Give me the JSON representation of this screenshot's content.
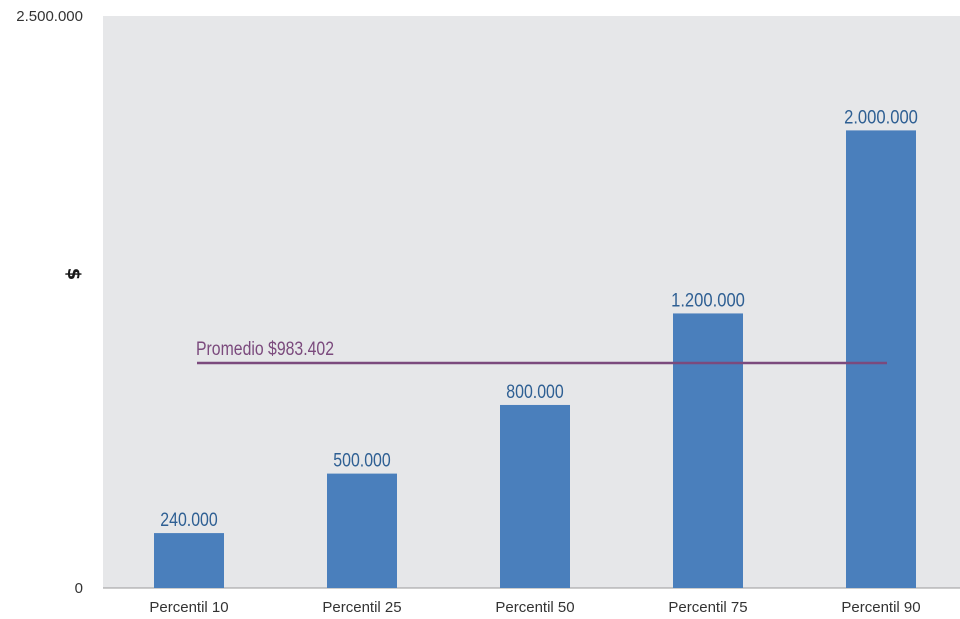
{
  "chart_data": {
    "type": "bar",
    "ylabel": "$",
    "ylim": [
      0,
      2500000
    ],
    "y_tick_labels": [
      "0",
      "2.500.000"
    ],
    "y_ticks": [
      0,
      2500000
    ],
    "categories": [
      "Percentil 10",
      "Percentil 25",
      "Percentil 50",
      "Percentil 75",
      "Percentil 90"
    ],
    "values": [
      240000,
      500000,
      800000,
      1200000,
      2000000
    ],
    "data_labels": [
      "240.000",
      "500.000",
      "800.000",
      "1.200.000",
      "2.000.000"
    ],
    "reference_line": {
      "label": "Promedio $983.402",
      "value": 983402
    },
    "grid": false,
    "colors": {
      "bar": "#4a7fbc",
      "data_label": "#2e5f93",
      "reference_line": "#7b4a7d",
      "plot_background": "#e6e7e9",
      "axis": "#9a9a9a"
    }
  }
}
